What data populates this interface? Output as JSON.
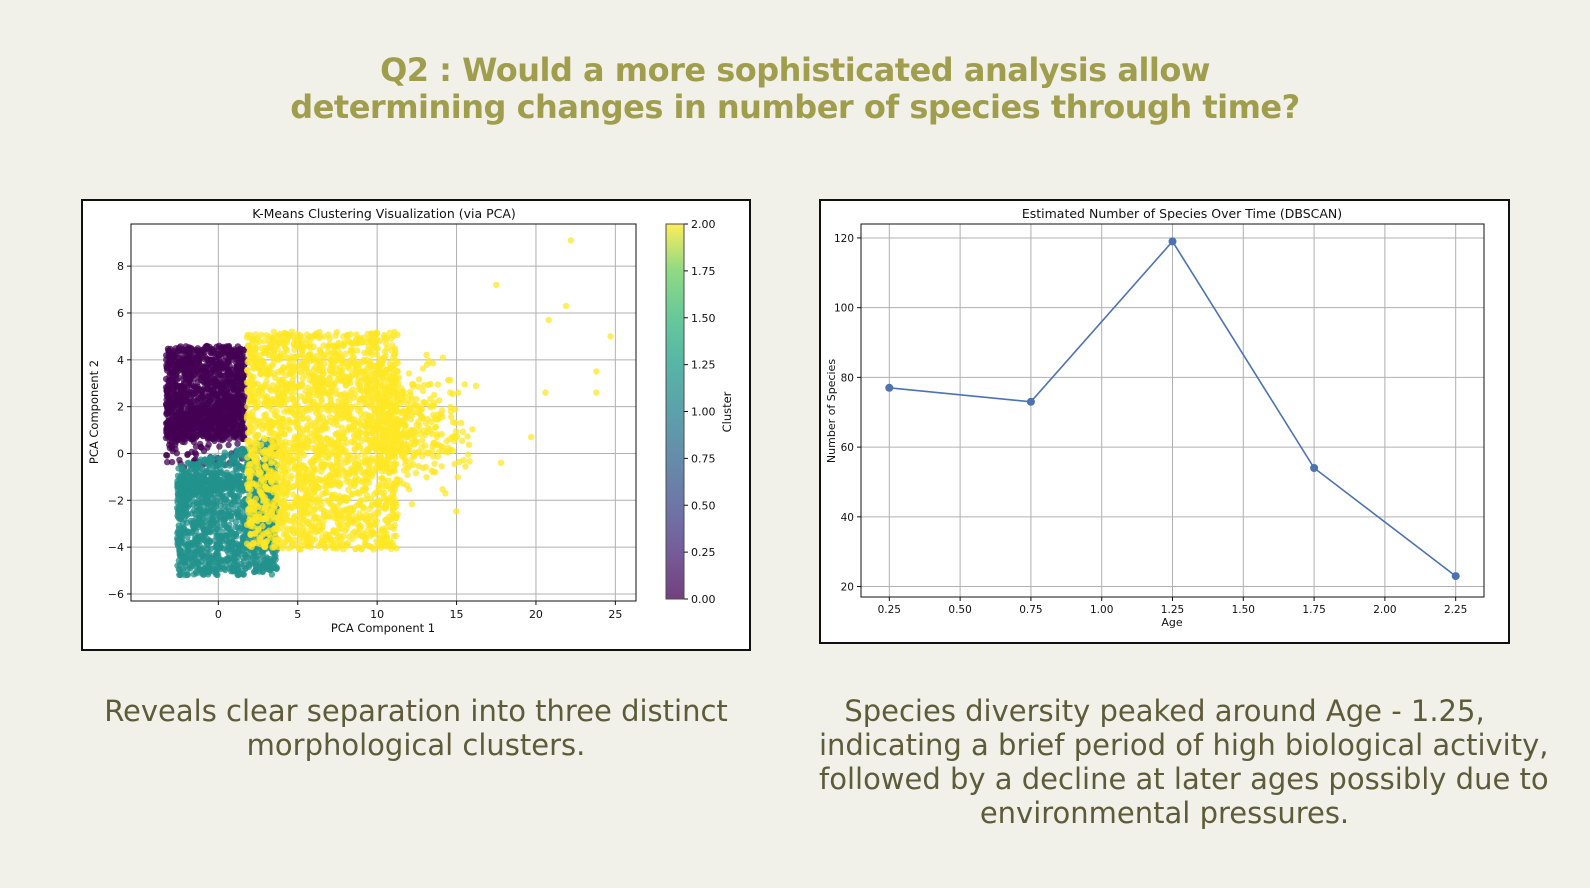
{
  "slide": {
    "title_lines": [
      "Q2 : Would a more sophisticated analysis allow",
      "determining changes in number of species through time?"
    ],
    "left_caption_lines": [
      "Reveals clear separation into three distinct",
      "morphological clusters."
    ],
    "right_caption_lines": [
      "Species diversity peaked around Age - 1.25,",
      "indicating a brief period of high biological activity,",
      "followed by a decline at later ages possibly due to",
      "environmental pressures."
    ]
  },
  "colors": {
    "background": "#f1f0e9",
    "title": "#a09e4d",
    "caption": "#5e5b38",
    "cluster_0": "#440154",
    "cluster_1": "#21918c",
    "cluster_2": "#fde725",
    "line": "#4c72b0"
  },
  "chart_data": [
    {
      "type": "scatter",
      "title": "K-Means Clustering Visualization (via PCA)",
      "xlabel": "PCA Component 1",
      "ylabel": "PCA Component 2",
      "xlim": [
        -5.5,
        26.3
      ],
      "ylim": [
        -6.3,
        9.8
      ],
      "xticks": [
        0,
        5,
        10,
        15,
        20,
        25
      ],
      "yticks": [
        -6,
        -4,
        -2,
        0,
        2,
        4,
        6,
        8
      ],
      "grid": true,
      "colorbar": {
        "label": "Cluster",
        "min": 0.0,
        "max": 2.0,
        "ticks": [
          "0.00",
          "0.25",
          "0.50",
          "0.75",
          "1.00",
          "1.25",
          "1.50",
          "1.75",
          "2.00"
        ]
      },
      "clusters": [
        {
          "cluster": 0,
          "x_range": [
            -3.5,
            1.8
          ],
          "y_range": [
            -0.8,
            4.9
          ]
        },
        {
          "cluster": 1,
          "x_range": [
            -2.8,
            3.8
          ],
          "y_range": [
            -5.4,
            0.9
          ]
        },
        {
          "cluster": 2,
          "x_range": [
            1.5,
            24.7
          ],
          "y_range": [
            -4.3,
            9.1
          ]
        }
      ]
    },
    {
      "type": "line",
      "title": "Estimated Number of Species Over Time (DBSCAN)",
      "xlabel": "Age",
      "ylabel": "Number of Species",
      "x": [
        0.25,
        0.75,
        1.25,
        1.75,
        2.25
      ],
      "y": [
        77,
        73,
        119,
        54,
        23
      ],
      "xlim": [
        0.15,
        2.35
      ],
      "ylim": [
        17,
        124
      ],
      "xticks": [
        "0.25",
        "0.50",
        "0.75",
        "1.00",
        "1.25",
        "1.50",
        "1.75",
        "2.00",
        "2.25"
      ],
      "yticks": [
        20,
        40,
        60,
        80,
        100,
        120
      ],
      "grid": true,
      "marker": "o"
    }
  ]
}
